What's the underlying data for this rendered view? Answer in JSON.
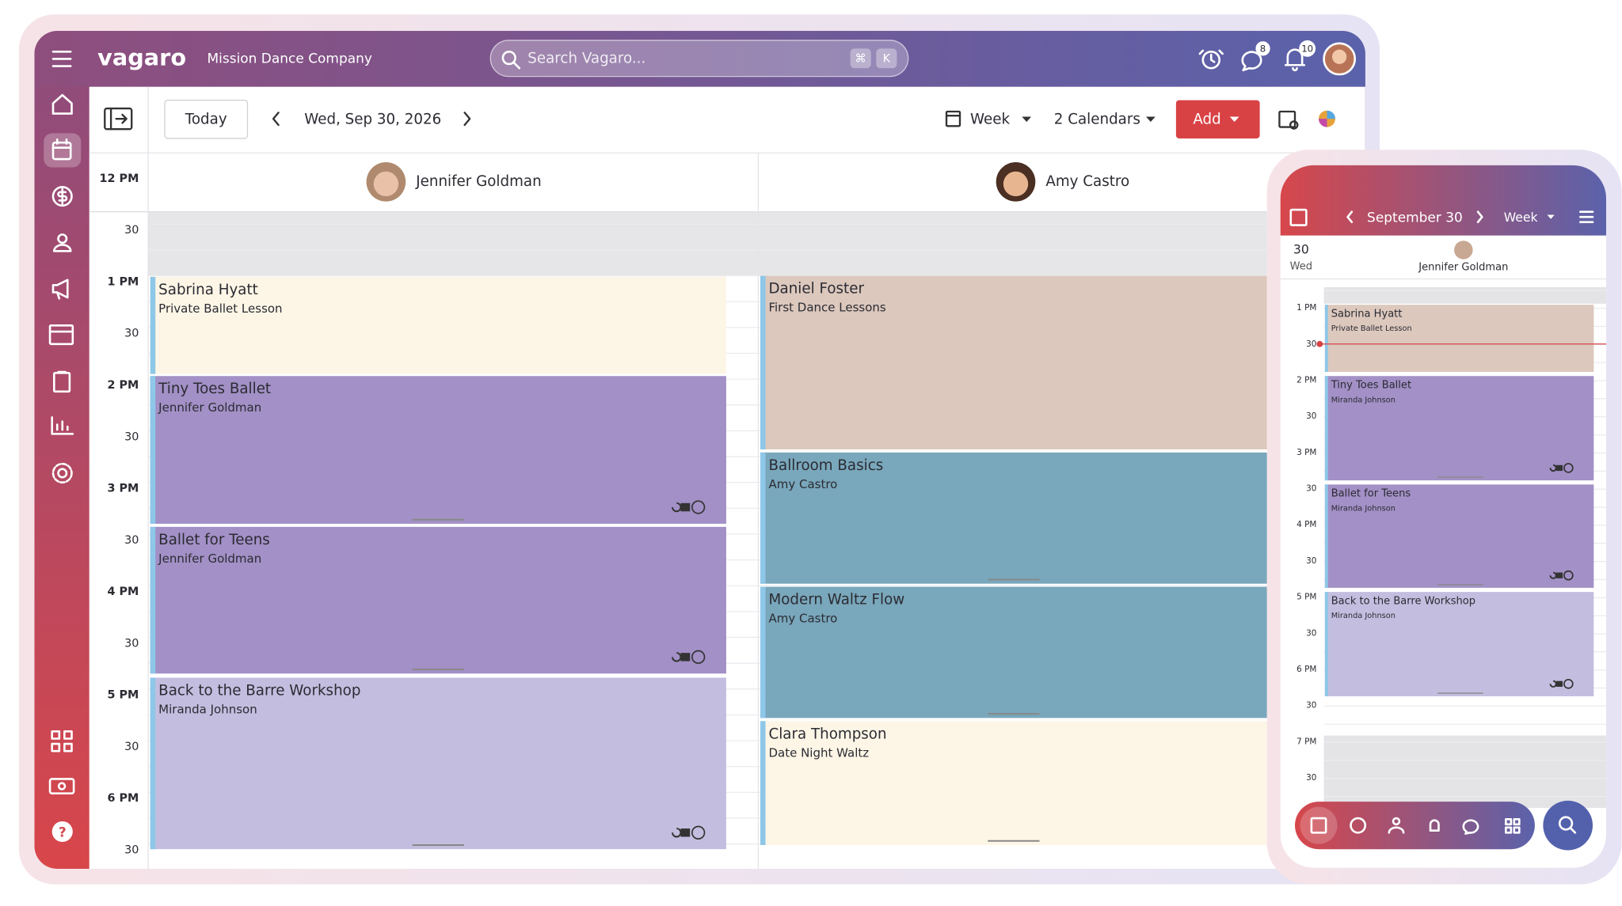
{
  "header": {
    "brand": "vagaro",
    "business": "Mission Dance Company",
    "search_placeholder": "Search Vagaro...",
    "shortcut": [
      "⌘",
      "K"
    ],
    "badges": [
      "8",
      "10"
    ]
  },
  "toolbar": {
    "today": "Today",
    "date": "Wed, Sep 30, 2026",
    "view": "Week",
    "calendars": "2 Calendars",
    "add": "Add"
  },
  "time_labels": [
    "12 PM",
    "30",
    "1 PM",
    "30",
    "2 PM",
    "30",
    "3 PM",
    "30",
    "4 PM",
    "30",
    "5 PM",
    "30",
    "6 PM",
    "30"
  ],
  "columns": [
    {
      "name": "Jennifer Goldman",
      "events": [
        {
          "title": "Sabrina Hyatt",
          "subtitle": "Private Ballet Lesson"
        },
        {
          "title": "Tiny Toes Ballet",
          "subtitle": "Jennifer Goldman"
        },
        {
          "title": "Ballet for Teens",
          "subtitle": "Jennifer Goldman"
        },
        {
          "title": "Back to the Barre Workshop",
          "subtitle": "Miranda Johnson"
        }
      ]
    },
    {
      "name": "Amy Castro",
      "events": [
        {
          "title": "Daniel Foster",
          "subtitle": "First Dance Lessons"
        },
        {
          "title": "Ballroom Basics",
          "subtitle": "Amy Castro"
        },
        {
          "title": "Modern Waltz Flow",
          "subtitle": "Amy Castro"
        },
        {
          "title": "Clara Thompson",
          "subtitle": "Date Night Waltz"
        }
      ]
    }
  ],
  "mobile": {
    "month": "September 30",
    "view": "Week",
    "day": "30",
    "weekday": "Wed",
    "staff": "Jennifer Goldman",
    "time_labels": [
      "1 PM",
      "30",
      "2 PM",
      "30",
      "3 PM",
      "30",
      "4 PM",
      "30",
      "5 PM",
      "30",
      "6 PM",
      "30",
      "7 PM",
      "30"
    ],
    "events": [
      {
        "title": "Sabrina Hyatt",
        "subtitle": "Private Ballet Lesson"
      },
      {
        "title": "Tiny Toes Ballet",
        "subtitle": "Miranda Johnson"
      },
      {
        "title": "Ballet for Teens",
        "subtitle": "Miranda Johnson"
      },
      {
        "title": "Back to the Barre Workshop",
        "subtitle": "Miranda Johnson"
      }
    ]
  }
}
